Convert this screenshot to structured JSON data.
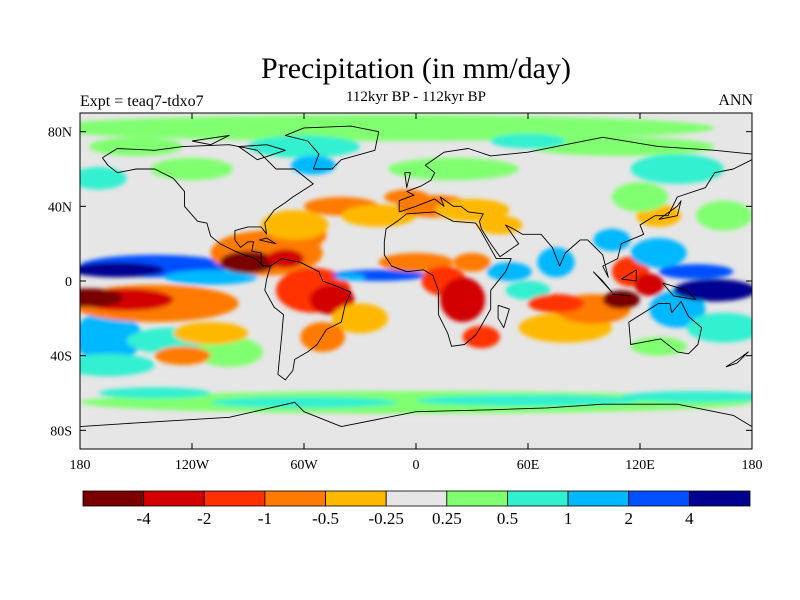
{
  "header": {
    "title": "Precipitation (in mm/day)",
    "subtitle": "112kyr BP - 112kyr BP",
    "left_label": "Expt = teaq7-tdxo7",
    "right_label": "ANN"
  },
  "map": {
    "projection": "cylindrical-equidistant",
    "lon_range": [
      -180,
      180
    ],
    "lat_range": [
      -90,
      90
    ],
    "x_ticks": [
      {
        "value": -180,
        "label": "180"
      },
      {
        "value": -120,
        "label": "120W"
      },
      {
        "value": -60,
        "label": "60W"
      },
      {
        "value": 0,
        "label": "0"
      },
      {
        "value": 60,
        "label": "60E"
      },
      {
        "value": 120,
        "label": "120E"
      },
      {
        "value": 180,
        "label": "180"
      }
    ],
    "y_ticks": [
      {
        "value": 80,
        "label": "80N"
      },
      {
        "value": 40,
        "label": "40N"
      },
      {
        "value": 0,
        "label": "0"
      },
      {
        "value": -40,
        "label": "40S"
      },
      {
        "value": -80,
        "label": "80S"
      }
    ],
    "background_color": "#e6e6e6",
    "coastline_color": "#000000"
  },
  "colorbar": {
    "levels": [
      "-4",
      "-2",
      "-1",
      "-0.5",
      "-0.25",
      "0.25",
      "0.5",
      "1",
      "2",
      "4"
    ],
    "colors": [
      "#7a0000",
      "#d20000",
      "#ff3000",
      "#ff7a00",
      "#ffb800",
      "#e6e6e6",
      "#80ff70",
      "#30f0d0",
      "#00b8ff",
      "#0050ff",
      "#000090"
    ]
  }
}
